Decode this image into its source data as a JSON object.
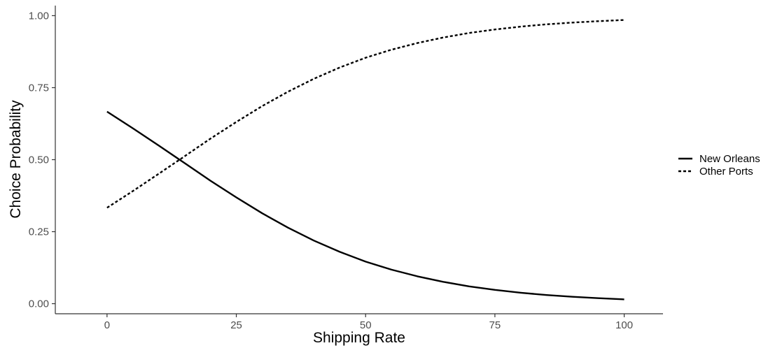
{
  "chart_data": {
    "type": "line",
    "title": "",
    "xlabel": "Shipping Rate",
    "ylabel": "Choice Probability",
    "xlim": [
      -10,
      107.5
    ],
    "ylim": [
      -0.035,
      1.035
    ],
    "x_ticks": [
      0,
      25,
      50,
      75,
      100
    ],
    "x_tick_labels": [
      "0",
      "25",
      "50",
      "75",
      "100"
    ],
    "y_ticks": [
      0,
      0.25,
      0.5,
      0.75,
      1
    ],
    "y_tick_labels": [
      "0.00",
      "0.25",
      "0.50",
      "0.75",
      "1.00"
    ],
    "grid": false,
    "legend_position": "right",
    "x": [
      0,
      5,
      10,
      15,
      20,
      25,
      30,
      35,
      40,
      45,
      50,
      55,
      60,
      65,
      70,
      75,
      80,
      85,
      90,
      95,
      100
    ],
    "series": [
      {
        "name": "New Orleans",
        "linestyle": "solid",
        "color": "#000000",
        "values": [
          0.667,
          0.609,
          0.549,
          0.488,
          0.427,
          0.369,
          0.314,
          0.264,
          0.219,
          0.18,
          0.146,
          0.118,
          0.095,
          0.076,
          0.06,
          0.048,
          0.038,
          0.03,
          0.024,
          0.019,
          0.015
        ]
      },
      {
        "name": "Other Ports",
        "linestyle": "dashed",
        "color": "#000000",
        "values": [
          0.333,
          0.391,
          0.451,
          0.512,
          0.573,
          0.631,
          0.686,
          0.736,
          0.781,
          0.82,
          0.854,
          0.882,
          0.905,
          0.924,
          0.94,
          0.952,
          0.962,
          0.97,
          0.976,
          0.981,
          0.985
        ]
      }
    ]
  }
}
